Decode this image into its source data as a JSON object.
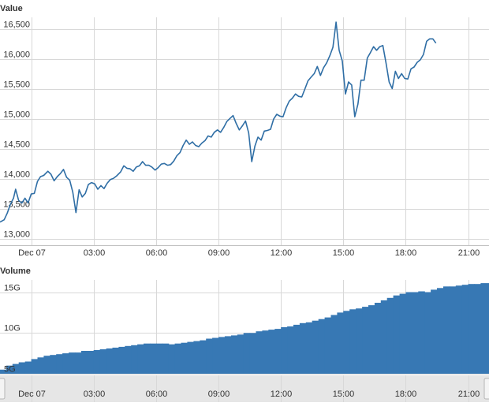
{
  "chart_data": {
    "type": "line",
    "panes": {
      "value": {
        "title": "Value",
        "ylim": [
          13000,
          16700
        ],
        "yticks": [
          13000,
          13500,
          14000,
          14500,
          15000,
          15500,
          16000,
          16500
        ]
      },
      "volume": {
        "title": "Volume",
        "ylim": [
          5,
          16.5
        ],
        "yticks": [
          5,
          10,
          15
        ],
        "ytick_labels": [
          "5G",
          "10G",
          "15G"
        ]
      }
    },
    "x_ticks": [
      {
        "label": "Dec 07",
        "t": 0
      },
      {
        "label": "03:00",
        "t": 3
      },
      {
        "label": "06:00",
        "t": 6
      },
      {
        "label": "09:00",
        "t": 9
      },
      {
        "label": "12:00",
        "t": 12
      },
      {
        "label": "15:00",
        "t": 15
      },
      {
        "label": "18:00",
        "t": 18
      },
      {
        "label": "21:00",
        "t": 21
      }
    ],
    "x_range_hours": [
      -1.5,
      22.0
    ],
    "colors": {
      "series": "#2f6ea5",
      "volume": "#3778b4"
    },
    "value_series": [
      [
        -1.5,
        13280
      ],
      [
        -1.3,
        13320
      ],
      [
        -1.15,
        13430
      ],
      [
        -1.0,
        13580
      ],
      [
        -0.85,
        13680
      ],
      [
        -0.75,
        13830
      ],
      [
        -0.6,
        13640
      ],
      [
        -0.45,
        13600
      ],
      [
        -0.3,
        13680
      ],
      [
        -0.15,
        13600
      ],
      [
        0.0,
        13750
      ],
      [
        0.15,
        13760
      ],
      [
        0.3,
        13960
      ],
      [
        0.45,
        14040
      ],
      [
        0.6,
        14060
      ],
      [
        0.8,
        14130
      ],
      [
        0.95,
        14080
      ],
      [
        1.1,
        13970
      ],
      [
        1.25,
        14040
      ],
      [
        1.4,
        14090
      ],
      [
        1.55,
        14160
      ],
      [
        1.7,
        14030
      ],
      [
        1.85,
        13980
      ],
      [
        2.0,
        13780
      ],
      [
        2.15,
        13440
      ],
      [
        2.3,
        13820
      ],
      [
        2.45,
        13700
      ],
      [
        2.6,
        13760
      ],
      [
        2.75,
        13910
      ],
      [
        2.9,
        13940
      ],
      [
        3.05,
        13920
      ],
      [
        3.2,
        13830
      ],
      [
        3.35,
        13890
      ],
      [
        3.5,
        13840
      ],
      [
        3.65,
        13930
      ],
      [
        3.8,
        13990
      ],
      [
        3.95,
        14010
      ],
      [
        4.1,
        14050
      ],
      [
        4.3,
        14120
      ],
      [
        4.45,
        14220
      ],
      [
        4.6,
        14180
      ],
      [
        4.75,
        14170
      ],
      [
        4.9,
        14130
      ],
      [
        5.05,
        14200
      ],
      [
        5.2,
        14220
      ],
      [
        5.35,
        14290
      ],
      [
        5.5,
        14230
      ],
      [
        5.65,
        14230
      ],
      [
        5.8,
        14200
      ],
      [
        5.95,
        14150
      ],
      [
        6.1,
        14190
      ],
      [
        6.25,
        14250
      ],
      [
        6.4,
        14260
      ],
      [
        6.55,
        14230
      ],
      [
        6.7,
        14240
      ],
      [
        6.85,
        14300
      ],
      [
        7.0,
        14390
      ],
      [
        7.15,
        14440
      ],
      [
        7.3,
        14560
      ],
      [
        7.45,
        14650
      ],
      [
        7.6,
        14580
      ],
      [
        7.75,
        14620
      ],
      [
        7.9,
        14560
      ],
      [
        8.05,
        14540
      ],
      [
        8.2,
        14600
      ],
      [
        8.35,
        14640
      ],
      [
        8.5,
        14720
      ],
      [
        8.65,
        14700
      ],
      [
        8.8,
        14780
      ],
      [
        8.95,
        14820
      ],
      [
        9.1,
        14780
      ],
      [
        9.25,
        14860
      ],
      [
        9.4,
        14960
      ],
      [
        9.55,
        15010
      ],
      [
        9.7,
        15060
      ],
      [
        9.85,
        14930
      ],
      [
        10.0,
        14820
      ],
      [
        10.15,
        14890
      ],
      [
        10.3,
        14970
      ],
      [
        10.45,
        14770
      ],
      [
        10.6,
        14290
      ],
      [
        10.75,
        14550
      ],
      [
        10.9,
        14700
      ],
      [
        11.05,
        14650
      ],
      [
        11.2,
        14800
      ],
      [
        11.35,
        14810
      ],
      [
        11.5,
        14830
      ],
      [
        11.65,
        15000
      ],
      [
        11.8,
        15080
      ],
      [
        11.95,
        15050
      ],
      [
        12.1,
        15040
      ],
      [
        12.25,
        15190
      ],
      [
        12.4,
        15300
      ],
      [
        12.55,
        15350
      ],
      [
        12.7,
        15420
      ],
      [
        12.85,
        15380
      ],
      [
        13.0,
        15370
      ],
      [
        13.15,
        15500
      ],
      [
        13.3,
        15640
      ],
      [
        13.45,
        15700
      ],
      [
        13.6,
        15760
      ],
      [
        13.75,
        15880
      ],
      [
        13.9,
        15730
      ],
      [
        14.05,
        15860
      ],
      [
        14.2,
        15940
      ],
      [
        14.35,
        16060
      ],
      [
        14.5,
        16200
      ],
      [
        14.65,
        16620
      ],
      [
        14.8,
        16150
      ],
      [
        14.95,
        15970
      ],
      [
        15.1,
        15420
      ],
      [
        15.25,
        15620
      ],
      [
        15.4,
        15570
      ],
      [
        15.55,
        15040
      ],
      [
        15.7,
        15250
      ],
      [
        15.85,
        15650
      ],
      [
        16.0,
        15650
      ],
      [
        16.15,
        16020
      ],
      [
        16.3,
        16110
      ],
      [
        16.45,
        16210
      ],
      [
        16.6,
        16150
      ],
      [
        16.75,
        16210
      ],
      [
        16.9,
        16230
      ],
      [
        17.05,
        15940
      ],
      [
        17.2,
        15620
      ],
      [
        17.35,
        15510
      ],
      [
        17.5,
        15800
      ],
      [
        17.65,
        15680
      ],
      [
        17.8,
        15760
      ],
      [
        17.95,
        15680
      ],
      [
        18.1,
        15670
      ],
      [
        18.25,
        15840
      ],
      [
        18.4,
        15870
      ],
      [
        18.55,
        15950
      ],
      [
        18.7,
        15990
      ],
      [
        18.85,
        16080
      ],
      [
        19.0,
        16300
      ],
      [
        19.15,
        16340
      ],
      [
        19.3,
        16340
      ],
      [
        19.45,
        16270
      ]
    ],
    "volume_series": [
      [
        -1.5,
        5.5
      ],
      [
        -1.2,
        6.0
      ],
      [
        -0.9,
        6.2
      ],
      [
        -0.6,
        6.4
      ],
      [
        -0.3,
        6.5
      ],
      [
        0.0,
        6.8
      ],
      [
        0.3,
        7.0
      ],
      [
        0.6,
        7.2
      ],
      [
        0.9,
        7.3
      ],
      [
        1.2,
        7.4
      ],
      [
        1.5,
        7.5
      ],
      [
        1.8,
        7.6
      ],
      [
        2.1,
        7.6
      ],
      [
        2.4,
        7.8
      ],
      [
        2.7,
        7.8
      ],
      [
        3.0,
        7.9
      ],
      [
        3.3,
        8.0
      ],
      [
        3.6,
        8.1
      ],
      [
        3.9,
        8.2
      ],
      [
        4.2,
        8.3
      ],
      [
        4.5,
        8.4
      ],
      [
        4.8,
        8.5
      ],
      [
        5.1,
        8.6
      ],
      [
        5.4,
        8.7
      ],
      [
        5.7,
        8.7
      ],
      [
        6.0,
        8.7
      ],
      [
        6.3,
        8.7
      ],
      [
        6.6,
        8.6
      ],
      [
        6.9,
        8.7
      ],
      [
        7.2,
        8.8
      ],
      [
        7.5,
        8.9
      ],
      [
        7.8,
        9.0
      ],
      [
        8.1,
        9.1
      ],
      [
        8.4,
        9.3
      ],
      [
        8.7,
        9.4
      ],
      [
        9.0,
        9.5
      ],
      [
        9.3,
        9.6
      ],
      [
        9.6,
        9.7
      ],
      [
        9.9,
        9.8
      ],
      [
        10.2,
        10.0
      ],
      [
        10.5,
        10.0
      ],
      [
        10.8,
        10.2
      ],
      [
        11.1,
        10.3
      ],
      [
        11.4,
        10.4
      ],
      [
        11.7,
        10.5
      ],
      [
        12.0,
        10.7
      ],
      [
        12.3,
        10.8
      ],
      [
        12.6,
        11.0
      ],
      [
        12.9,
        11.2
      ],
      [
        13.2,
        11.3
      ],
      [
        13.5,
        11.5
      ],
      [
        13.8,
        11.7
      ],
      [
        14.1,
        11.9
      ],
      [
        14.4,
        12.2
      ],
      [
        14.7,
        12.5
      ],
      [
        15.0,
        12.7
      ],
      [
        15.3,
        12.9
      ],
      [
        15.6,
        13.0
      ],
      [
        15.9,
        13.2
      ],
      [
        16.2,
        13.4
      ],
      [
        16.5,
        13.7
      ],
      [
        16.8,
        14.0
      ],
      [
        17.1,
        14.3
      ],
      [
        17.4,
        14.6
      ],
      [
        17.7,
        14.8
      ],
      [
        18.0,
        15.0
      ],
      [
        18.3,
        15.0
      ],
      [
        18.6,
        15.1
      ],
      [
        18.9,
        15.0
      ],
      [
        19.2,
        15.3
      ],
      [
        19.5,
        15.5
      ],
      [
        19.8,
        15.7
      ],
      [
        20.1,
        15.7
      ],
      [
        20.4,
        15.8
      ],
      [
        20.7,
        15.9
      ],
      [
        21.0,
        16.0
      ],
      [
        21.3,
        16.0
      ],
      [
        21.6,
        16.1
      ]
    ]
  }
}
